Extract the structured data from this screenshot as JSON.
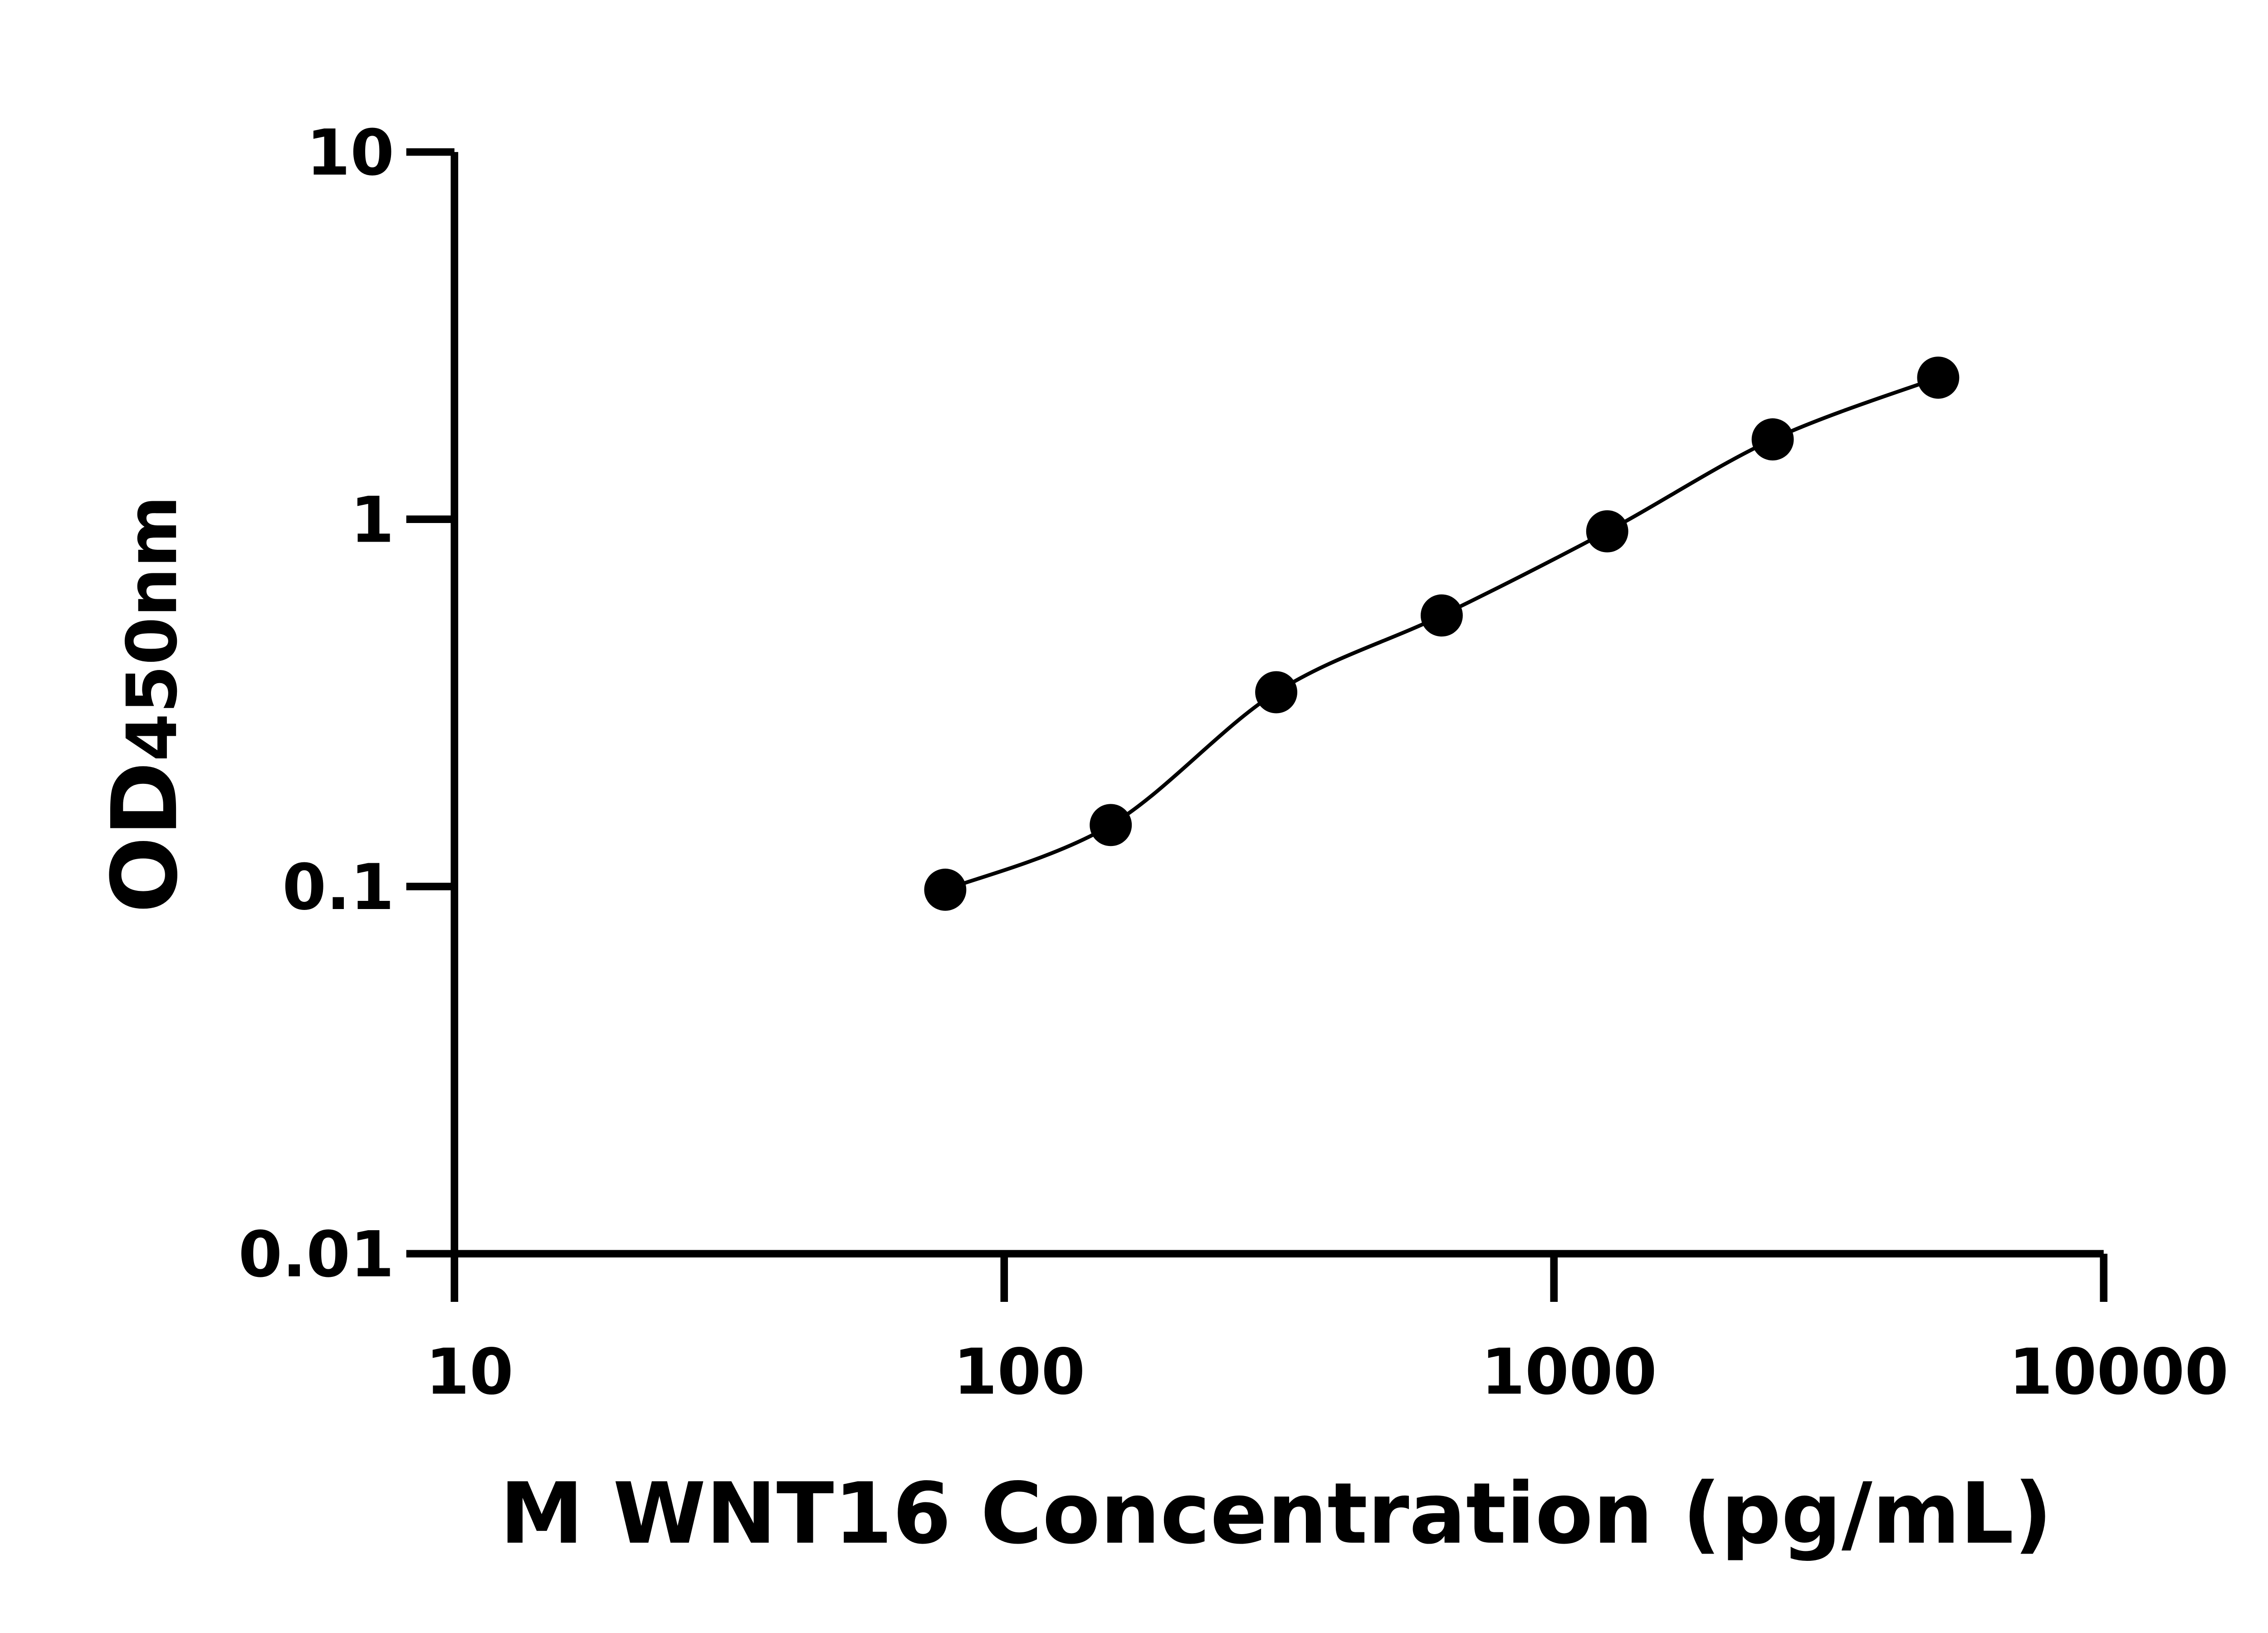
{
  "chart_data": {
    "type": "scatter",
    "title": "",
    "xlabel": "M WNT16 Concentration (pg/mL)",
    "ylabel_main": "OD",
    "ylabel_sub": "450nm",
    "x_scale": "log",
    "y_scale": "log",
    "xlim": [
      10,
      10000
    ],
    "ylim": [
      0.01,
      10
    ],
    "x_ticks": [
      "10",
      "100",
      "1000",
      "10000"
    ],
    "y_ticks": [
      "0.01",
      "0.1",
      "1",
      "10"
    ],
    "grid": false,
    "legend": "none",
    "fit_curve": true,
    "colors": {
      "points": "#000000",
      "line": "#000000"
    },
    "series": [
      {
        "x": [
          78.125,
          156.25,
          312.5,
          625,
          1250,
          2500,
          5000
        ],
        "y": [
          0.098,
          0.147,
          0.338,
          0.547,
          0.927,
          1.65,
          2.43
        ]
      }
    ]
  }
}
